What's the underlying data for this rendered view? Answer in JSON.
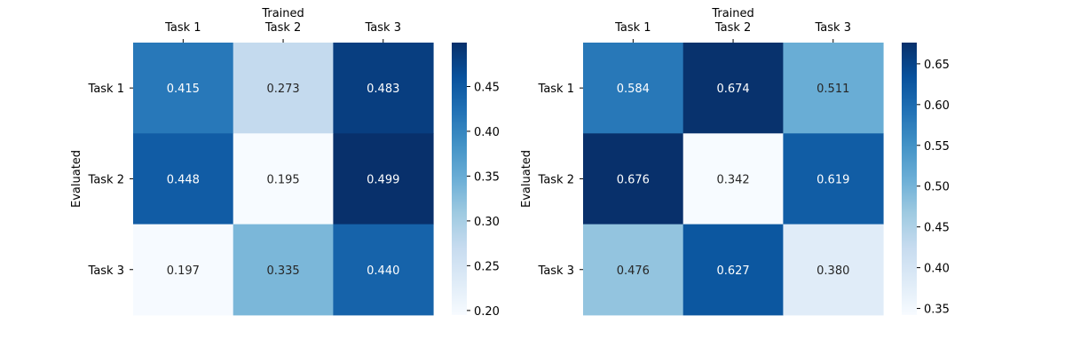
{
  "chart_data": [
    {
      "type": "heatmap",
      "xlabel": "Trained",
      "ylabel": "Evaluated",
      "x_categories": [
        "Task 1",
        "Task 2",
        "Task 3"
      ],
      "y_categories": [
        "Task 1",
        "Task 2",
        "Task 3"
      ],
      "values": [
        [
          0.415,
          0.273,
          0.483
        ],
        [
          0.448,
          0.195,
          0.499
        ],
        [
          0.197,
          0.335,
          0.44
        ]
      ],
      "value_labels": [
        [
          "0.415",
          "0.273",
          "0.483"
        ],
        [
          "0.448",
          "0.195",
          "0.499"
        ],
        [
          "0.197",
          "0.335",
          "0.440"
        ]
      ],
      "colormap": "Blues",
      "vmin": 0.195,
      "vmax": 0.499,
      "colorbar_ticks": [
        "0.20",
        "0.25",
        "0.30",
        "0.35",
        "0.40",
        "0.45"
      ]
    },
    {
      "type": "heatmap",
      "xlabel": "Trained",
      "ylabel": "Evaluated",
      "x_categories": [
        "Task 1",
        "Task 2",
        "Task 3"
      ],
      "y_categories": [
        "Task 1",
        "Task 2",
        "Task 3"
      ],
      "values": [
        [
          0.584,
          0.674,
          0.511
        ],
        [
          0.676,
          0.342,
          0.619
        ],
        [
          0.476,
          0.627,
          0.38
        ]
      ],
      "value_labels": [
        [
          "0.584",
          "0.674",
          "0.511"
        ],
        [
          "0.676",
          "0.342",
          "0.619"
        ],
        [
          "0.476",
          "0.627",
          "0.380"
        ]
      ],
      "colormap": "Blues",
      "vmin": 0.342,
      "vmax": 0.676,
      "colorbar_ticks": [
        "0.35",
        "0.40",
        "0.45",
        "0.50",
        "0.55",
        "0.60",
        "0.65"
      ]
    }
  ]
}
